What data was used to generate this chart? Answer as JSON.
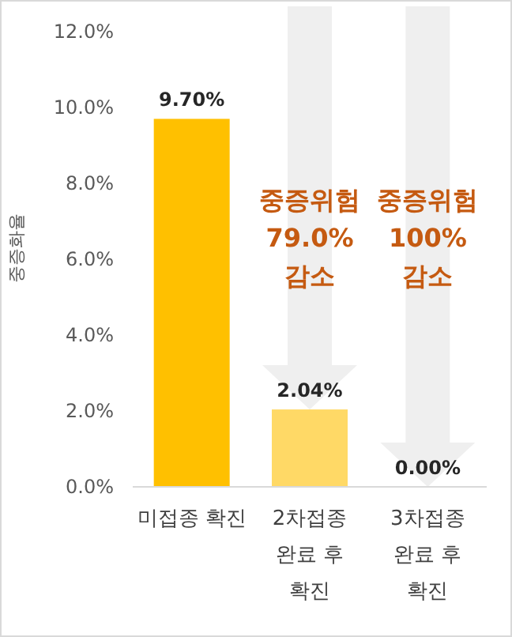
{
  "chart_data": {
    "type": "bar",
    "ylabel": "중증화율",
    "categories": [
      "미접종 확진",
      "2차접종 완료 후 확진",
      "3차접종 완료 후 확진"
    ],
    "values": [
      9.7,
      2.04,
      0.0
    ],
    "colors": [
      "#ffc000",
      "#ffd966",
      "#ffd966"
    ],
    "value_labels": [
      "9.70%",
      "2.04%",
      "0.00%"
    ],
    "ylim": [
      0,
      12
    ],
    "yticks": [
      {
        "value": 0,
        "label": "0.0%"
      },
      {
        "value": 2,
        "label": "2.0%"
      },
      {
        "value": 4,
        "label": "4.0%"
      },
      {
        "value": 6,
        "label": "6.0%"
      },
      {
        "value": 8,
        "label": "8.0%"
      },
      {
        "value": 10,
        "label": "10.0%"
      },
      {
        "value": 12,
        "label": "12.0%"
      }
    ],
    "annotations": [
      "중증위험 79.0% 감소",
      "중증위험 100% 감소"
    ]
  }
}
